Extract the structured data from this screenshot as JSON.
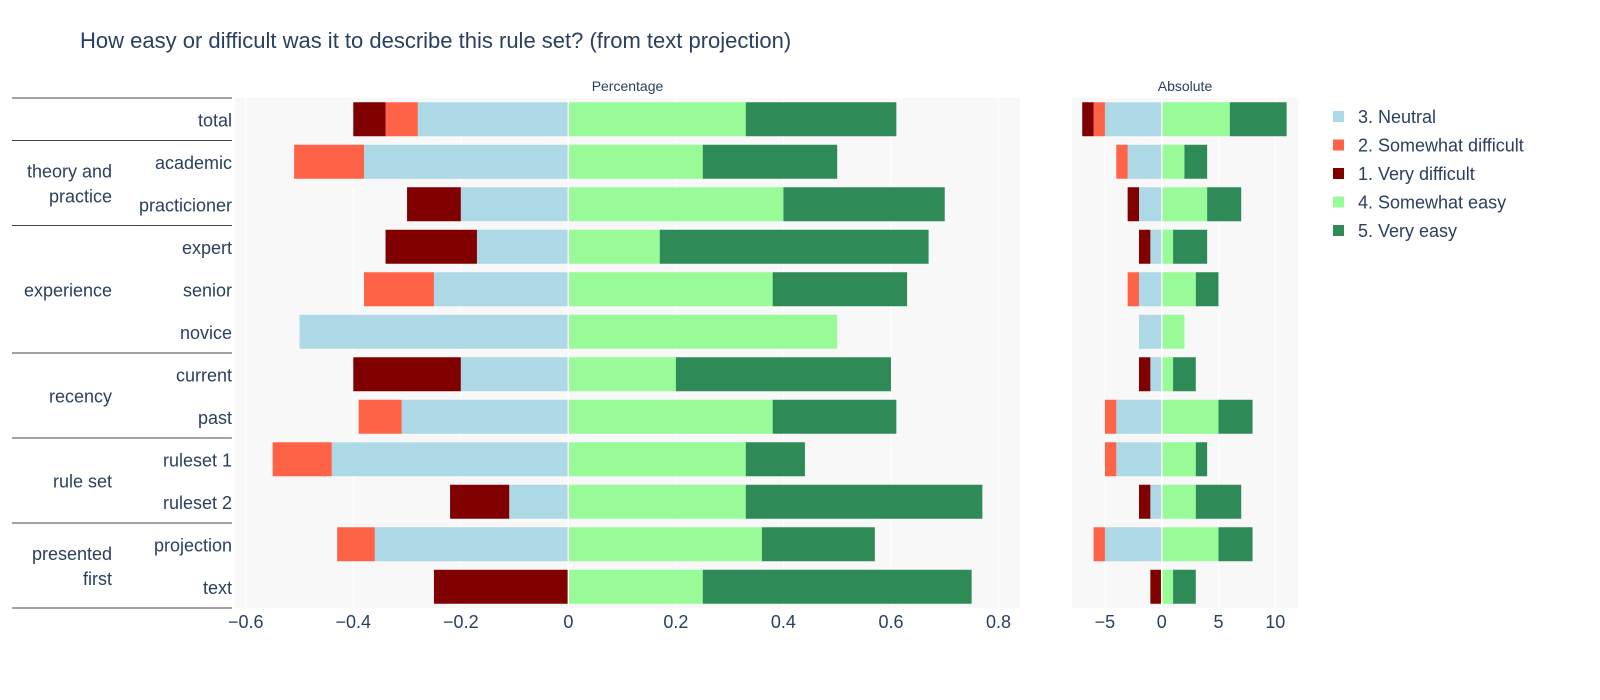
{
  "chart_data": {
    "type": "bar",
    "orientation": "horizontal",
    "stacking": "diverging",
    "title": "How easy or difficult was it to describe this rule set? (from text projection)",
    "categories": [
      "total",
      "academic",
      "practicioner",
      "expert",
      "senior",
      "novice",
      "current",
      "past",
      "ruleset 1",
      "ruleset 2",
      "projection",
      "text"
    ],
    "groups": [
      {
        "label": [
          "theory and",
          "practice"
        ],
        "members": [
          "academic",
          "practicioner"
        ]
      },
      {
        "label": [
          "experience"
        ],
        "members": [
          "expert",
          "senior",
          "novice"
        ]
      },
      {
        "label": [
          "recency"
        ],
        "members": [
          "current",
          "past"
        ]
      },
      {
        "label": [
          "rule set"
        ],
        "members": [
          "ruleset 1",
          "ruleset 2"
        ]
      },
      {
        "label": [
          "presented",
          "first"
        ],
        "members": [
          "projection",
          "text"
        ]
      }
    ],
    "legend": {
      "placement": "right",
      "order": [
        "3. Neutral",
        "2. Somewhat difficult",
        "1. Very difficult",
        "4. Somewhat easy",
        "5. Very easy"
      ]
    },
    "series": [
      {
        "name": "3. Neutral",
        "color": "#add8e6",
        "side": "negative"
      },
      {
        "name": "2. Somewhat difficult",
        "color": "#ff6347",
        "side": "negative"
      },
      {
        "name": "1. Very difficult",
        "color": "#800000",
        "side": "negative"
      },
      {
        "name": "4. Somewhat easy",
        "color": "#98fb98",
        "side": "positive"
      },
      {
        "name": "5. Very easy",
        "color": "#2e8b57",
        "side": "positive"
      }
    ],
    "panels": [
      {
        "subtitle": "Percentage",
        "xlim": [
          -0.62,
          0.84
        ],
        "ticks": [
          -0.6,
          -0.4,
          -0.2,
          0,
          0.2,
          0.4,
          0.6,
          0.8
        ],
        "tick_labels": [
          "−0.6",
          "−0.4",
          "−0.2",
          "0",
          "0.2",
          "0.4",
          "0.6",
          "0.8"
        ],
        "values": {
          "3. Neutral": [
            0.28,
            0.38,
            0.2,
            0.17,
            0.25,
            0.5,
            0.2,
            0.31,
            0.44,
            0.11,
            0.36,
            0
          ],
          "2. Somewhat difficult": [
            0.06,
            0.13,
            0,
            0,
            0.13,
            0,
            0,
            0.08,
            0.11,
            0,
            0.07,
            0
          ],
          "1. Very difficult": [
            0.06,
            0,
            0.1,
            0.17,
            0,
            0,
            0.2,
            0,
            0,
            0.11,
            0,
            0.25
          ],
          "4. Somewhat easy": [
            0.33,
            0.25,
            0.4,
            0.17,
            0.38,
            0.5,
            0.2,
            0.38,
            0.33,
            0.33,
            0.36,
            0.25
          ],
          "5. Very easy": [
            0.28,
            0.25,
            0.3,
            0.5,
            0.25,
            0,
            0.4,
            0.23,
            0.11,
            0.44,
            0.21,
            0.5
          ]
        }
      },
      {
        "subtitle": "Absolute",
        "xlim": [
          -7.9,
          12
        ],
        "ticks": [
          -5,
          0,
          5,
          10
        ],
        "tick_labels": [
          "−5",
          "0",
          "5",
          "10"
        ],
        "values": {
          "3. Neutral": [
            5,
            3,
            2,
            1,
            2,
            2,
            1,
            4,
            4,
            1,
            5,
            0
          ],
          "2. Somewhat difficult": [
            1,
            1,
            0,
            0,
            1,
            0,
            0,
            1,
            1,
            0,
            1,
            0
          ],
          "1. Very difficult": [
            1,
            0,
            1,
            1,
            0,
            0,
            1,
            0,
            0,
            1,
            0,
            1
          ],
          "4. Somewhat easy": [
            6,
            2,
            4,
            1,
            3,
            2,
            1,
            5,
            3,
            3,
            5,
            1
          ],
          "5. Very easy": [
            5,
            2,
            3,
            3,
            2,
            0,
            2,
            3,
            1,
            4,
            3,
            2
          ]
        }
      }
    ]
  }
}
